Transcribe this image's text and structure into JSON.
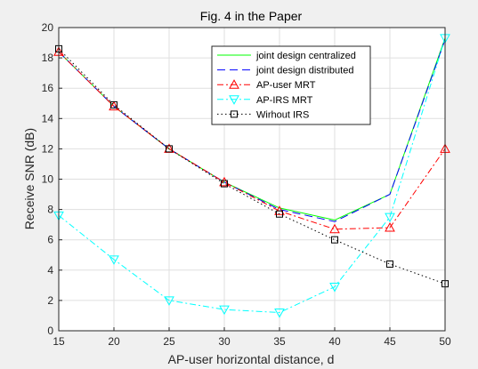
{
  "chart_data": {
    "type": "line",
    "title": "Fig. 4 in the Paper",
    "xlabel": "AP-user horizontal distance, d",
    "ylabel": "Receive SNR (dB)",
    "x": [
      15,
      20,
      25,
      30,
      35,
      40,
      45,
      50
    ],
    "xlim": [
      15,
      50
    ],
    "ylim": [
      0,
      20
    ],
    "xticks": [
      "15",
      "20",
      "25",
      "30",
      "35",
      "40",
      "45",
      "50"
    ],
    "yticks": [
      "0",
      "2",
      "4",
      "6",
      "8",
      "10",
      "12",
      "14",
      "16",
      "18",
      "20"
    ],
    "grid": true,
    "legend_position": "top-right",
    "series": [
      {
        "name": "joint design centralized",
        "color": "#00ff00",
        "line_style": "solid",
        "marker": "none",
        "values": [
          18.4,
          14.8,
          12.0,
          9.8,
          8.1,
          7.3,
          9.0,
          19.3
        ]
      },
      {
        "name": "joint design distributed",
        "color": "#0000ff",
        "line_style": "dashed",
        "marker": "none",
        "values": [
          18.4,
          14.8,
          12.0,
          9.8,
          8.0,
          7.2,
          9.0,
          19.2
        ]
      },
      {
        "name": "AP-user MRT",
        "color": "#ff0000",
        "line_style": "dashdot",
        "marker": "triangle-up",
        "values": [
          18.4,
          14.8,
          12.0,
          9.8,
          7.9,
          6.7,
          6.8,
          12.0
        ]
      },
      {
        "name": "AP-IRS MRT",
        "color": "#00ffff",
        "line_style": "dashdot",
        "marker": "triangle-down",
        "values": [
          7.6,
          4.7,
          2.0,
          1.4,
          1.2,
          2.9,
          7.5,
          19.3
        ]
      },
      {
        "name": "Wirhout IRS",
        "color": "#000000",
        "line_style": "dotted",
        "marker": "square",
        "values": [
          18.6,
          14.9,
          12.0,
          9.7,
          7.7,
          6.0,
          4.4,
          3.1
        ]
      }
    ]
  }
}
